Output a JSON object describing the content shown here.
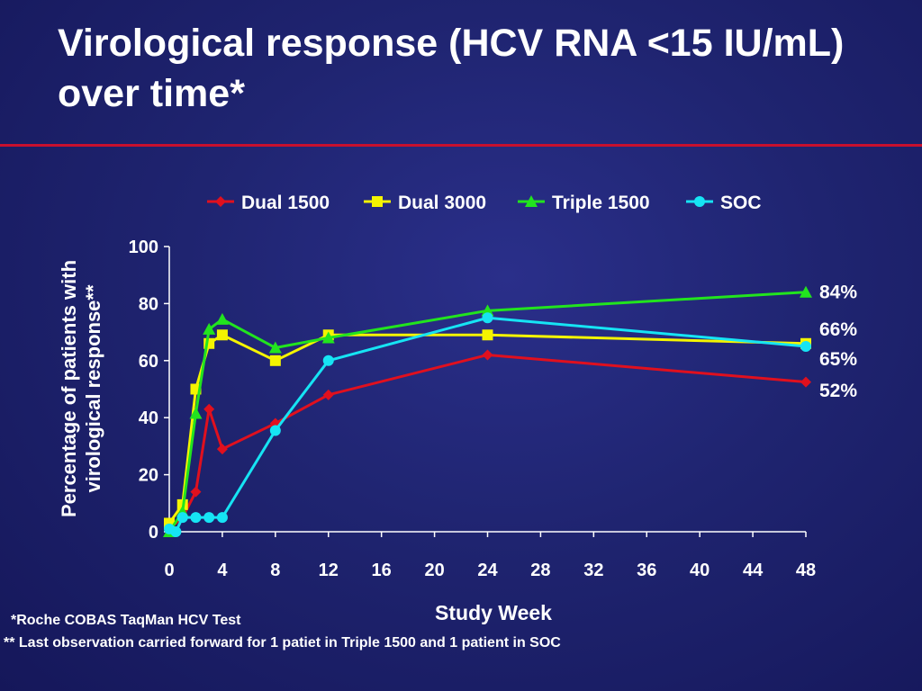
{
  "slide": {
    "title": "Virological response (HCV RNA <15 IU/mL) over time*"
  },
  "colors": {
    "background": "#1f2470",
    "title_rule": "#c8102e",
    "text": "#ffffff"
  },
  "chart_data": {
    "type": "line",
    "xlabel": "Study Week",
    "ylabel_lines": [
      "Percentage of patients with",
      "virological response**"
    ],
    "xlim": [
      0,
      48
    ],
    "ylim": [
      0,
      100
    ],
    "x_ticks": [
      0,
      4,
      8,
      12,
      16,
      20,
      24,
      28,
      32,
      36,
      40,
      44,
      48
    ],
    "y_ticks": [
      0,
      20,
      40,
      60,
      80,
      100
    ],
    "grid": false,
    "legend_position": "top",
    "series": [
      {
        "name": "Dual 1500",
        "color": "#e0101e",
        "marker": "diamond",
        "x": [
          0,
          1,
          2,
          3,
          4,
          8,
          12,
          24,
          48
        ],
        "y": [
          1,
          5,
          14,
          43,
          29,
          38,
          48,
          62,
          52.5
        ]
      },
      {
        "name": "Dual 3000",
        "color": "#f4f400",
        "marker": "square",
        "x": [
          0,
          1,
          2,
          3,
          4,
          8,
          12,
          24,
          48
        ],
        "y": [
          3,
          9.5,
          50,
          66,
          69,
          60,
          69,
          69,
          66
        ]
      },
      {
        "name": "Triple 1500",
        "color": "#22e41e",
        "marker": "triangle",
        "x": [
          0,
          1,
          2,
          3,
          4,
          8,
          12,
          24,
          48
        ],
        "y": [
          0,
          7,
          41.5,
          71,
          74.5,
          64.5,
          68,
          77.5,
          84
        ]
      },
      {
        "name": "SOC",
        "color": "#16e4f4",
        "marker": "circle",
        "x": [
          0,
          0.5,
          1,
          2,
          3,
          4,
          8,
          12,
          24,
          48
        ],
        "y": [
          1,
          0,
          5,
          5,
          5,
          5,
          35.5,
          60,
          75,
          65
        ]
      }
    ],
    "end_labels": [
      {
        "text": "84%",
        "y": 84
      },
      {
        "text": "66%",
        "y": 71
      },
      {
        "text": "65%",
        "y": 60.5
      },
      {
        "text": "52%",
        "y": 49.5
      }
    ]
  },
  "footnotes": [
    "*Roche COBAS TaqMan HCV Test",
    "** Last observation carried forward for 1 patiet in Triple 1500 and 1 patient in SOC"
  ]
}
